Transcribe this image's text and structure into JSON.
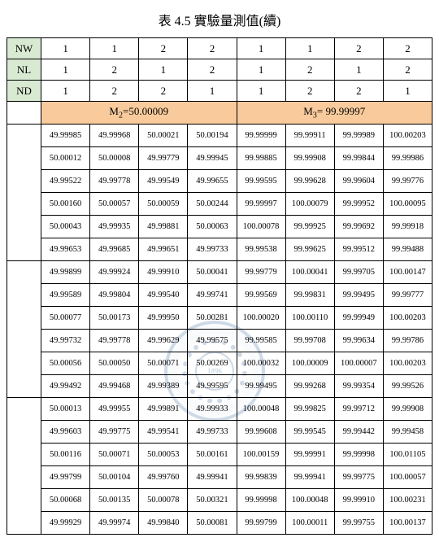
{
  "caption": "表 4.5 實驗量測值(續)",
  "header": {
    "labels": [
      "NW",
      "NL",
      "ND"
    ],
    "NW": [
      "1",
      "1",
      "2",
      "2",
      "1",
      "1",
      "2",
      "2"
    ],
    "NL": [
      "1",
      "2",
      "1",
      "2",
      "1",
      "2",
      "1",
      "2"
    ],
    "ND": [
      "1",
      "2",
      "2",
      "1",
      "1",
      "2",
      "2",
      "1"
    ]
  },
  "sections": {
    "left_label_html": "M<sub>2</sub>=50.00009",
    "right_label_html": "M<sub>3</sub>= 99.99997",
    "bg_color": "#f9cb9c"
  },
  "colors": {
    "label_bg": "#d9ead3",
    "border": "#000000",
    "page_bg": "#ffffff"
  },
  "blocks": [
    {
      "rows": [
        [
          "49.99985",
          "49.99968",
          "50.00021",
          "50.00194",
          "99.99999",
          "99.99911",
          "99.99989",
          "100.00203"
        ],
        [
          "50.00012",
          "50.00008",
          "49.99779",
          "49.99945",
          "99.99885",
          "99.99908",
          "99.99844",
          "99.99986"
        ],
        [
          "49.99522",
          "49.99778",
          "49.99549",
          "49.99655",
          "99.99595",
          "99.99628",
          "99.99604",
          "99.99776"
        ],
        [
          "50.00160",
          "50.00057",
          "50.00059",
          "50.00244",
          "99.99997",
          "100.00079",
          "99.99952",
          "100.00095"
        ],
        [
          "50.00043",
          "49.99935",
          "49.99881",
          "50.00063",
          "100.00078",
          "99.99925",
          "99.99692",
          "99.99918"
        ],
        [
          "49.99653",
          "49.99685",
          "49.99651",
          "49.99733",
          "99.99538",
          "99.99625",
          "99.99512",
          "99.99488"
        ]
      ]
    },
    {
      "rows": [
        [
          "49.99899",
          "49.99924",
          "49.99910",
          "50.00041",
          "99.99779",
          "100.00041",
          "99.99705",
          "100.00147"
        ],
        [
          "49.99589",
          "49.99804",
          "49.99540",
          "49.99741",
          "99.99569",
          "99.99831",
          "99.99495",
          "99.99777"
        ],
        [
          "50.00077",
          "50.00173",
          "49.99950",
          "50.00281",
          "100.00020",
          "100.00110",
          "99.99949",
          "100.00203"
        ],
        [
          "49.99732",
          "49.99778",
          "49.99629",
          "49.99575",
          "99.99585",
          "99.99708",
          "99.99634",
          "99.99786"
        ],
        [
          "50.00056",
          "50.00050",
          "50.00071",
          "50.00269",
          "100.00032",
          "100.00009",
          "100.00007",
          "100.00203"
        ],
        [
          "49.99492",
          "49.99468",
          "49.99389",
          "49.99595",
          "99.99495",
          "99.99268",
          "99.99354",
          "99.99526"
        ]
      ]
    },
    {
      "rows": [
        [
          "50.00013",
          "49.99955",
          "49.99891",
          "49.99933",
          "100.00048",
          "99.99825",
          "99.99712",
          "99.99908"
        ],
        [
          "49.99603",
          "49.99775",
          "49.99541",
          "49.99733",
          "99.99608",
          "99.99545",
          "99.99442",
          "99.99458"
        ],
        [
          "50.00116",
          "50.00071",
          "50.00053",
          "50.00161",
          "100.00159",
          "99.99991",
          "99.99998",
          "100.01105"
        ],
        [
          "49.99799",
          "50.00104",
          "49.99760",
          "49.99941",
          "99.99839",
          "99.99941",
          "99.99775",
          "100.00057"
        ],
        [
          "50.00068",
          "50.00135",
          "50.00078",
          "50.00321",
          "99.99998",
          "100.00048",
          "99.99910",
          "100.00231"
        ],
        [
          "49.99929",
          "49.99974",
          "49.99840",
          "50.00081",
          "99.99799",
          "100.00011",
          "99.99755",
          "100.00137"
        ]
      ]
    }
  ]
}
